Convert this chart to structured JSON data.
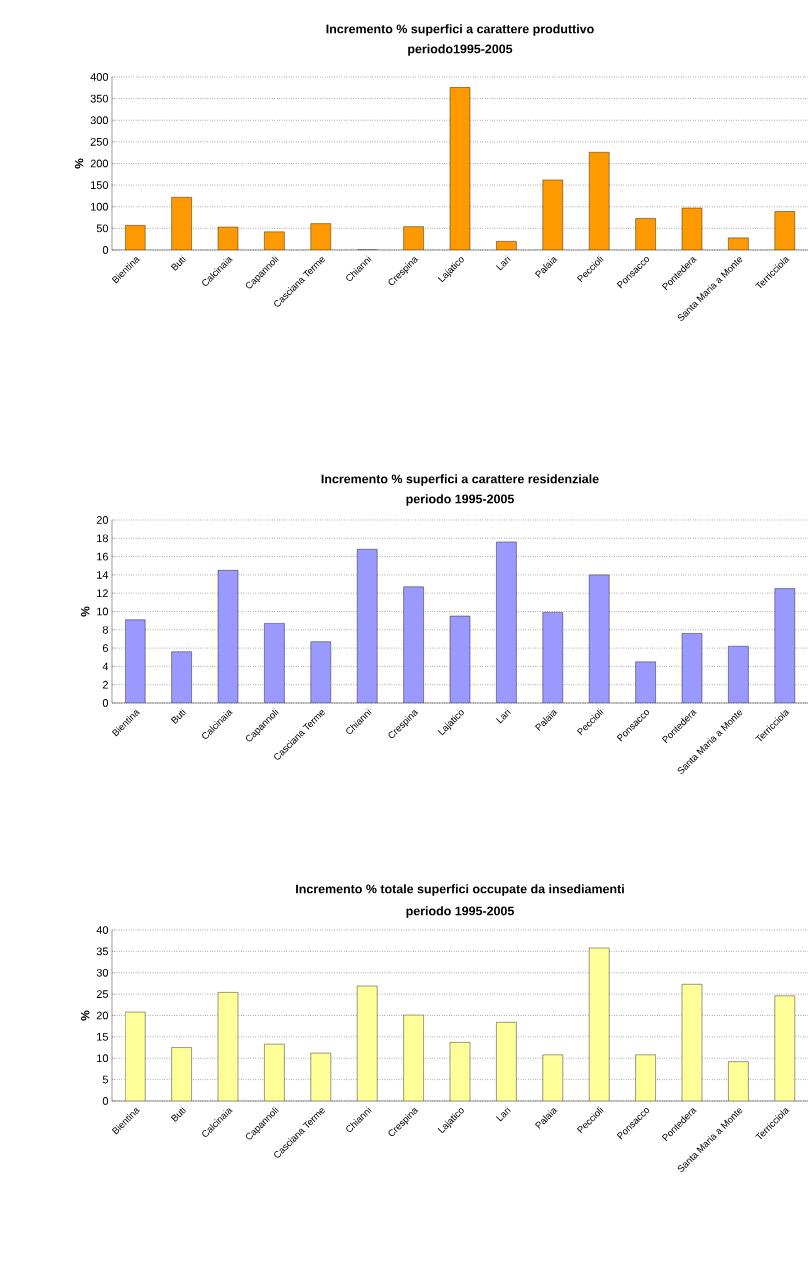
{
  "chart_data": [
    {
      "type": "bar",
      "title": "Incremento % superfici a carattere produttivo",
      "subtitle": "periodo1995-2005",
      "ylabel": "%",
      "categories": [
        "Bientina",
        "Buti",
        "Calcinaia",
        "Capannoli",
        "Casciana Terme",
        "Chianni",
        "Crespina",
        "Lajatico",
        "Lari",
        "Palaia",
        "Peccioli",
        "Ponsacco",
        "Pontedera",
        "Santa Maria a Monte",
        "Terricciola"
      ],
      "values": [
        57,
        122,
        53,
        42,
        61,
        0,
        54,
        376,
        20,
        162,
        226,
        73,
        97,
        28,
        89
      ],
      "color": "#ff9900",
      "ylim": [
        0,
        400
      ],
      "yticks": [
        0,
        50,
        100,
        150,
        200,
        250,
        300,
        350,
        400
      ],
      "grid": "y"
    },
    {
      "type": "bar",
      "title": "Incremento % superfici a carattere residenziale",
      "subtitle": "periodo 1995-2005",
      "ylabel": "%",
      "categories": [
        "Bientina",
        "Buti",
        "Calcinaia",
        "Capannoli",
        "Casciana Terme",
        "Chianni",
        "Crespina",
        "Lajatico",
        "Lari",
        "Palaia",
        "Peccioli",
        "Ponsacco",
        "Pontedera",
        "Santa Maria a Monte",
        "Terricciola"
      ],
      "values": [
        9.1,
        5.6,
        14.5,
        8.7,
        6.7,
        16.8,
        12.7,
        9.5,
        17.6,
        9.9,
        14.0,
        4.5,
        7.6,
        6.2,
        12.5
      ],
      "color": "#9999ff",
      "ylim": [
        0,
        20
      ],
      "yticks": [
        0,
        2,
        4,
        6,
        8,
        10,
        12,
        14,
        16,
        18,
        20
      ],
      "grid": "y"
    },
    {
      "type": "bar",
      "title": "Incremento % totale superfici occupate da insediamenti",
      "subtitle": "periodo 1995-2005",
      "ylabel": "%",
      "categories": [
        "Bientina",
        "Buti",
        "Calcinaia",
        "Capannoli",
        "Casciana Terme",
        "Chianni",
        "Crespina",
        "Lajatico",
        "Lari",
        "Palaia",
        "Peccioli",
        "Ponsacco",
        "Pontedera",
        "Santa Maria a Monte",
        "Terricciola"
      ],
      "values": [
        20.8,
        12.5,
        25.4,
        13.3,
        11.2,
        26.9,
        20.1,
        13.7,
        18.4,
        10.8,
        35.8,
        10.8,
        27.3,
        9.2,
        24.6
      ],
      "color": "#ffff99",
      "ylim": [
        0,
        40
      ],
      "yticks": [
        0,
        5,
        10,
        15,
        20,
        25,
        30,
        35,
        40
      ],
      "grid": "y"
    }
  ]
}
